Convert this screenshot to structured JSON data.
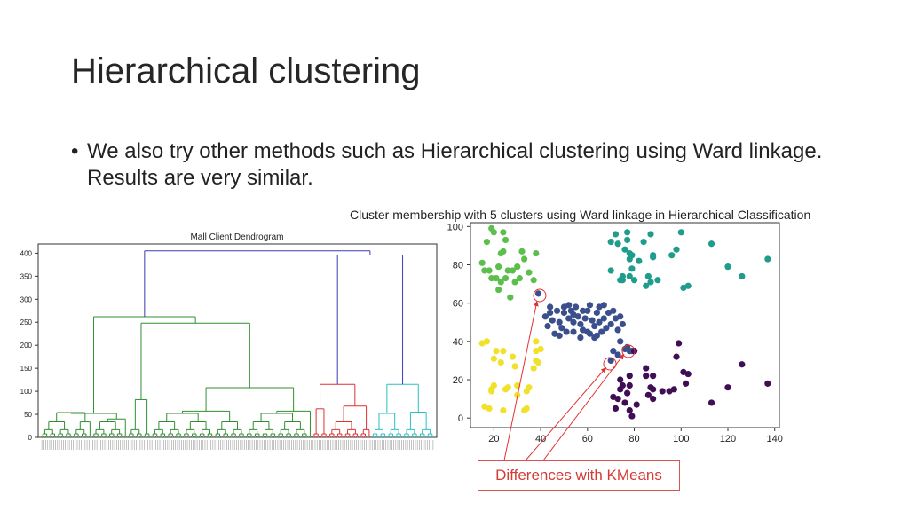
{
  "slide": {
    "title": "Hierarchical clustering",
    "bullet": "We also try other methods such as Hierarchical clustering using Ward linkage. Results are very similar.",
    "callout": "Differences with KMeans"
  },
  "chart_data": [
    {
      "type": "dendrogram",
      "title": "Mall Client Dendrogram",
      "ylim": [
        0,
        420
      ],
      "yticks": [
        0,
        50,
        100,
        150,
        200,
        250,
        300,
        350,
        400
      ],
      "colors": {
        "link": "#3b3bb3",
        "green": "#2f8f2f",
        "red": "#e03131",
        "cyan": "#26c0c7"
      },
      "merges": [
        {
          "name": "root",
          "height": 405
        },
        {
          "name": "green-cluster",
          "height": 262
        },
        {
          "name": "right-group",
          "height": 396
        },
        {
          "name": "red-cluster",
          "height": 115
        },
        {
          "name": "cyan-cluster",
          "height": 115
        }
      ]
    },
    {
      "type": "scatter",
      "title": "Cluster membership with 5 clusters using Ward linkage in Hierarchical Classification",
      "xlim": [
        10,
        142
      ],
      "ylim": [
        -5,
        102
      ],
      "xticks": [
        20,
        40,
        60,
        80,
        100,
        120,
        140
      ],
      "yticks": [
        0,
        20,
        40,
        60,
        80,
        100
      ],
      "series": [
        {
          "name": "cluster-green",
          "color": "#5cbf4c",
          "points": [
            [
              15,
              81
            ],
            [
              16,
              77
            ],
            [
              17,
              92
            ],
            [
              18,
              77
            ],
            [
              19,
              99
            ],
            [
              21,
              73
            ],
            [
              22,
              79
            ],
            [
              23,
              86
            ],
            [
              24,
              97
            ],
            [
              25,
              93
            ],
            [
              25,
              73
            ],
            [
              26,
              77
            ],
            [
              27,
              63
            ],
            [
              28,
              77
            ],
            [
              29,
              71
            ],
            [
              32,
              87
            ],
            [
              33,
              83
            ],
            [
              35,
              76
            ],
            [
              37,
              72
            ],
            [
              38,
              86
            ],
            [
              19,
              73
            ],
            [
              20,
              97
            ],
            [
              24,
              87
            ],
            [
              30,
              79
            ],
            [
              31,
              73
            ],
            [
              22,
              67
            ],
            [
              23,
              71
            ]
          ]
        },
        {
          "name": "cluster-teal",
          "color": "#1f9c8c",
          "points": [
            [
              70,
              77
            ],
            [
              72,
              96
            ],
            [
              73,
              91
            ],
            [
              74,
              72
            ],
            [
              75,
              74
            ],
            [
              76,
              88
            ],
            [
              77,
              97
            ],
            [
              78,
              83
            ],
            [
              78,
              74
            ],
            [
              79,
              78
            ],
            [
              80,
              72
            ],
            [
              82,
              82
            ],
            [
              84,
              92
            ],
            [
              86,
              74
            ],
            [
              87,
              96
            ],
            [
              88,
              85
            ],
            [
              90,
              72
            ],
            [
              96,
              85
            ],
            [
              98,
              88
            ],
            [
              100,
              97
            ],
            [
              101,
              68
            ],
            [
              103,
              69
            ],
            [
              113,
              91
            ],
            [
              120,
              79
            ],
            [
              126,
              74
            ],
            [
              137,
              83
            ],
            [
              77,
              93
            ],
            [
              78,
              86
            ],
            [
              85,
              69
            ],
            [
              87,
              71
            ],
            [
              79,
              85
            ],
            [
              88,
              84
            ],
            [
              70,
              92
            ],
            [
              75,
              72
            ]
          ]
        },
        {
          "name": "cluster-navy",
          "color": "#3b4f8c",
          "points": [
            [
              39,
              65
            ],
            [
              42,
              53
            ],
            [
              43,
              48
            ],
            [
              44,
              55
            ],
            [
              45,
              51
            ],
            [
              46,
              44
            ],
            [
              47,
              56
            ],
            [
              48,
              50
            ],
            [
              49,
              47
            ],
            [
              50,
              55
            ],
            [
              50,
              58
            ],
            [
              51,
              45
            ],
            [
              52,
              52
            ],
            [
              53,
              56
            ],
            [
              54,
              50
            ],
            [
              54,
              45
            ],
            [
              55,
              58
            ],
            [
              56,
              53
            ],
            [
              57,
              49
            ],
            [
              58,
              46
            ],
            [
              59,
              52
            ],
            [
              60,
              56
            ],
            [
              61,
              59
            ],
            [
              62,
              51
            ],
            [
              63,
              48
            ],
            [
              63,
              42
            ],
            [
              64,
              55
            ],
            [
              65,
              50
            ],
            [
              65,
              58
            ],
            [
              66,
              45
            ],
            [
              67,
              52
            ],
            [
              67,
              59
            ],
            [
              68,
              47
            ],
            [
              69,
              55
            ],
            [
              70,
              49
            ],
            [
              71,
              56
            ],
            [
              72,
              52
            ],
            [
              73,
              46
            ],
            [
              74,
              53
            ],
            [
              75,
              49
            ],
            [
              44,
              58
            ],
            [
              48,
              43
            ],
            [
              52,
              59
            ],
            [
              57,
              42
            ],
            [
              60,
              45
            ],
            [
              64,
              43
            ],
            [
              61,
              44
            ],
            [
              54,
              54
            ],
            [
              58,
              56
            ],
            [
              70,
              30
            ],
            [
              76,
              36
            ],
            [
              78,
              35
            ],
            [
              74,
              40
            ],
            [
              71,
              35
            ],
            [
              73,
              33
            ],
            [
              77,
              37
            ],
            [
              79,
              35
            ],
            [
              80,
              35
            ]
          ]
        },
        {
          "name": "cluster-yellow",
          "color": "#f2e12a",
          "points": [
            [
              15,
              39
            ],
            [
              16,
              6
            ],
            [
              17,
              40
            ],
            [
              18,
              5
            ],
            [
              19,
              14
            ],
            [
              19,
              15
            ],
            [
              20,
              31
            ],
            [
              21,
              35
            ],
            [
              23,
              29
            ],
            [
              24,
              35
            ],
            [
              24,
              4
            ],
            [
              25,
              15
            ],
            [
              26,
              16
            ],
            [
              28,
              32
            ],
            [
              29,
              27
            ],
            [
              30,
              17
            ],
            [
              30,
              12
            ],
            [
              33,
              4
            ],
            [
              34,
              14
            ],
            [
              37,
              26
            ],
            [
              38,
              35
            ],
            [
              38,
              40
            ],
            [
              39,
              29
            ],
            [
              40,
              36
            ],
            [
              35,
              16
            ],
            [
              38,
              30
            ],
            [
              34,
              5
            ],
            [
              20,
              17
            ]
          ]
        },
        {
          "name": "cluster-purple",
          "color": "#3f0e54",
          "points": [
            [
              71,
              11
            ],
            [
              72,
              5
            ],
            [
              73,
              10
            ],
            [
              74,
              15
            ],
            [
              75,
              17
            ],
            [
              76,
              8
            ],
            [
              77,
              13
            ],
            [
              78,
              4
            ],
            [
              78,
              22
            ],
            [
              79,
              1
            ],
            [
              80,
              35
            ],
            [
              81,
              7
            ],
            [
              85,
              26
            ],
            [
              86,
              12
            ],
            [
              87,
              16
            ],
            [
              88,
              10
            ],
            [
              88,
              22
            ],
            [
              92,
              14
            ],
            [
              97,
              15
            ],
            [
              98,
              32
            ],
            [
              99,
              39
            ],
            [
              101,
              24
            ],
            [
              102,
              18
            ],
            [
              103,
              23
            ],
            [
              113,
              8
            ],
            [
              120,
              16
            ],
            [
              126,
              28
            ],
            [
              137,
              18
            ],
            [
              74,
              20
            ],
            [
              85,
              22
            ],
            [
              88,
              15
            ],
            [
              95,
              14
            ],
            [
              78,
              17
            ]
          ]
        }
      ]
    }
  ]
}
